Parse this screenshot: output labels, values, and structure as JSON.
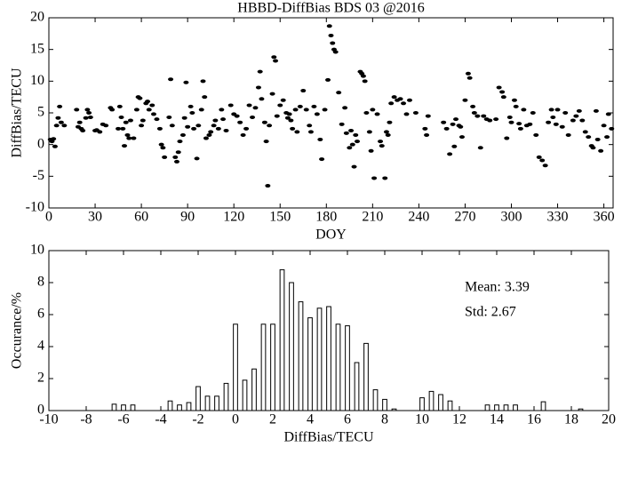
{
  "chart_data": [
    {
      "type": "scatter",
      "title": "HBBD-DiffBias BDS 03 @2016",
      "xlabel": "DOY",
      "ylabel": "DiffBias/TECU",
      "color": "#000000",
      "xlim": [
        0,
        366
      ],
      "xticks": [
        0,
        30,
        60,
        90,
        120,
        150,
        180,
        210,
        240,
        270,
        300,
        330,
        360
      ],
      "ylim": [
        -10,
        20
      ],
      "yticks": [
        -10,
        -5,
        0,
        5,
        10,
        15,
        20
      ],
      "x": [
        1,
        2,
        3,
        4,
        5,
        6,
        7,
        8,
        10,
        18,
        19,
        20,
        21,
        22,
        24,
        25,
        26,
        27,
        30,
        31,
        33,
        35,
        37,
        40,
        41,
        45,
        46,
        47,
        48,
        49,
        50,
        51,
        52,
        53,
        55,
        57,
        58,
        59,
        60,
        61,
        63,
        64,
        65,
        67,
        68,
        70,
        72,
        73,
        74,
        75,
        78,
        79,
        80,
        82,
        83,
        84,
        85,
        87,
        88,
        89,
        90,
        92,
        93,
        94,
        96,
        97,
        99,
        100,
        101,
        102,
        104,
        105,
        107,
        108,
        110,
        112,
        113,
        115,
        118,
        120,
        122,
        124,
        126,
        128,
        130,
        132,
        134,
        136,
        137,
        138,
        140,
        141,
        142,
        143,
        145,
        146,
        147,
        148,
        150,
        152,
        154,
        155,
        156,
        157,
        158,
        160,
        161,
        163,
        165,
        167,
        169,
        170,
        172,
        174,
        176,
        177,
        179,
        181,
        182,
        183,
        184,
        185,
        186,
        188,
        190,
        192,
        193,
        195,
        196,
        197,
        198,
        199,
        200,
        202,
        203,
        204,
        205,
        206,
        208,
        209,
        210,
        211,
        213,
        215,
        216,
        218,
        219,
        220,
        221,
        222,
        224,
        226,
        228,
        230,
        232,
        234,
        238,
        244,
        245,
        246,
        256,
        258,
        260,
        262,
        263,
        264,
        266,
        267,
        268,
        270,
        272,
        273,
        275,
        276,
        278,
        280,
        282,
        284,
        286,
        290,
        292,
        294,
        295,
        297,
        299,
        300,
        302,
        303,
        305,
        306,
        308,
        310,
        312,
        314,
        316,
        318,
        320,
        322,
        324,
        326,
        327,
        329,
        330,
        333,
        335,
        337,
        340,
        342,
        344,
        346,
        348,
        350,
        352,
        353,
        355,
        356,
        358,
        360,
        362,
        363,
        365
      ],
      "y": [
        0.8,
        0.5,
        0.9,
        -0.3,
        3,
        4.2,
        6,
        3.5,
        3,
        5.5,
        2.8,
        3.5,
        2.5,
        2.2,
        4.2,
        5.5,
        5,
        4.3,
        2.2,
        2.3,
        2,
        3.2,
        3,
        5.8,
        5.5,
        2.5,
        6,
        4.3,
        2.5,
        -0.2,
        3.5,
        1.5,
        1,
        3.8,
        1,
        5.5,
        7.5,
        7.3,
        3,
        3.8,
        6.5,
        6.8,
        5.5,
        6.2,
        4.8,
        4,
        2.5,
        0,
        -0.5,
        -2,
        4.3,
        10.3,
        3,
        -2,
        -2.7,
        -1.2,
        0.5,
        1.5,
        4.2,
        9.8,
        2.8,
        6,
        5,
        2.5,
        -2.2,
        3,
        5.5,
        10,
        7.5,
        1,
        1.5,
        2,
        3,
        3.8,
        2.5,
        5.5,
        4,
        2.2,
        6.2,
        4.8,
        4.5,
        3.5,
        1.5,
        2.5,
        6.2,
        4.3,
        5.8,
        9,
        11.5,
        7.2,
        3.5,
        0.5,
        -6.5,
        3,
        8,
        13.8,
        13.2,
        4.5,
        6.2,
        7,
        5,
        4.2,
        4.8,
        3.8,
        2.5,
        5.5,
        2,
        6,
        8.5,
        5.5,
        3,
        2,
        6,
        4.8,
        0.8,
        -2.3,
        5.5,
        10.2,
        18.7,
        17.2,
        16,
        15,
        14.6,
        8.2,
        3.2,
        5.8,
        1.8,
        -0.5,
        2.2,
        0,
        -3.5,
        1.5,
        0.5,
        11.5,
        11.2,
        10.8,
        10,
        5,
        2,
        -1,
        5.5,
        -5.3,
        4.8,
        0.5,
        -0.2,
        -5.3,
        2,
        1.5,
        3.5,
        6.5,
        7.5,
        7,
        7.2,
        6.5,
        4.8,
        7,
        5,
        2.5,
        1.5,
        4.5,
        3.5,
        2.5,
        -1.5,
        3.2,
        -0.3,
        4,
        3,
        2.8,
        1.2,
        7,
        11.2,
        10.5,
        6,
        5,
        4.5,
        -0.5,
        4.5,
        4,
        3.8,
        4,
        9,
        8.3,
        7.5,
        1,
        4.3,
        3.5,
        7,
        6,
        3.3,
        2.5,
        5.5,
        3,
        3.2,
        5,
        1.5,
        -2,
        -2.5,
        -3.3,
        3.5,
        5.5,
        4.3,
        3.2,
        5.5,
        2.8,
        5,
        1.5,
        3.8,
        4.5,
        5.3,
        3.8,
        2,
        1.2,
        -0.2,
        -0.5,
        5.3,
        0.8,
        -1,
        3,
        1.2,
        4.8,
        2.5
      ]
    },
    {
      "type": "histogram",
      "xlabel": "DiffBias/TECU",
      "ylabel": "Occurance/%",
      "color": "#ffffff",
      "annotations": [
        "Mean: 3.39",
        "Std: 2.67"
      ],
      "xlim": [
        -10,
        20
      ],
      "xticks": [
        -10,
        -8,
        -6,
        -4,
        -2,
        0,
        2,
        4,
        6,
        8,
        10,
        12,
        14,
        16,
        18,
        20
      ],
      "ylim": [
        0,
        10
      ],
      "yticks": [
        0,
        2,
        4,
        6,
        8,
        10
      ],
      "bins": [
        -6.75,
        -6.25,
        -5.75,
        -5.25,
        -4.75,
        -4.25,
        -3.75,
        -3.25,
        -2.75,
        -2.25,
        -1.75,
        -1.25,
        -0.75,
        -0.25,
        0.25,
        0.75,
        1.25,
        1.75,
        2.25,
        2.75,
        3.25,
        3.75,
        4.25,
        4.75,
        5.25,
        5.75,
        6.25,
        6.75,
        7.25,
        7.75,
        8.25,
        8.75,
        9.25,
        9.75,
        10.25,
        10.75,
        11.25,
        11.75,
        12.25,
        12.75,
        13.25,
        13.75,
        14.25,
        14.75,
        15.25,
        15.75,
        16.25,
        16.75,
        17.25,
        17.75,
        18.25,
        18.75
      ],
      "counts": [
        0.4,
        0.35,
        0.35,
        0,
        0,
        0,
        0.6,
        0.35,
        0.5,
        1.5,
        0.9,
        0.9,
        1.7,
        5.4,
        1.9,
        2.6,
        5.4,
        5.4,
        8.8,
        8.0,
        6.8,
        5.8,
        6.4,
        6.5,
        5.4,
        5.3,
        3.0,
        4.2,
        1.3,
        0.7,
        0.1,
        0,
        0,
        0.8,
        1.2,
        1.0,
        0.6,
        0,
        0,
        0,
        0.35,
        0.35,
        0.35,
        0.35,
        0,
        0,
        0.55,
        0,
        0,
        0,
        0.1
      ]
    }
  ]
}
